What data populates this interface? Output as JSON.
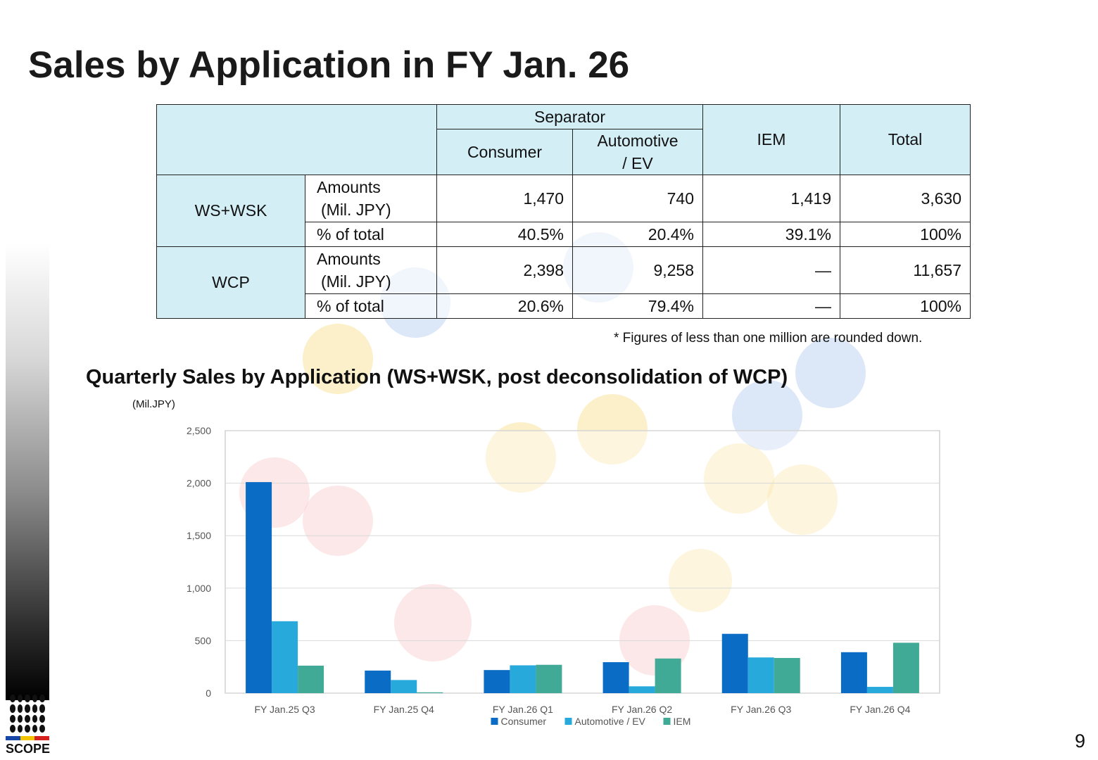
{
  "title": "Sales by Application in FY Jan. 26",
  "table": {
    "header_group": "Separator",
    "header_consumer": "Consumer",
    "header_automotive_l1": "Automotive",
    "header_automotive_l2": "/ EV",
    "header_iem": "IEM",
    "header_total": "Total",
    "rows": [
      {
        "segment": "WS+WSK",
        "amount_label_l1": "Amounts",
        "amount_label_l2": "(Mil. JPY)",
        "amounts": [
          "1,470",
          "740",
          "1,419",
          "3,630"
        ],
        "pct_label": "% of total",
        "pcts": [
          "40.5%",
          "20.4%",
          "39.1%",
          "100%"
        ]
      },
      {
        "segment": "WCP",
        "amount_label_l1": "Amounts",
        "amount_label_l2": "(Mil. JPY)",
        "amounts": [
          "2,398",
          "9,258",
          "—",
          "11,657"
        ],
        "pct_label": "% of total",
        "pcts": [
          "20.6%",
          "79.4%",
          "—",
          "100%"
        ]
      }
    ]
  },
  "note": "* Figures of less than one million are rounded down.",
  "chart_title": "Quarterly Sales by Application (WS+WSK, post deconsolidation of WCP)",
  "unit_label": "(Mil.JPY)",
  "chart_data": {
    "type": "bar",
    "categories": [
      "FY Jan.25 Q3",
      "FY Jan.25 Q4",
      "FY Jan.26 Q1",
      "FY Jan.26 Q2",
      "FY Jan.26 Q3",
      "FY Jan.26 Q4"
    ],
    "series": [
      {
        "name": "Consumer",
        "color": "#0a6cc4",
        "values": [
          2010,
          215,
          220,
          295,
          565,
          390
        ]
      },
      {
        "name": "Automotive / EV",
        "color": "#27a9dc",
        "values": [
          685,
          125,
          265,
          65,
          340,
          60
        ]
      },
      {
        "name": "IEM",
        "color": "#41aa96",
        "values": [
          262,
          8,
          270,
          330,
          335,
          480
        ]
      }
    ],
    "ylim": [
      0,
      2500
    ],
    "yticks": [
      "0",
      "500",
      "1,000",
      "1,500",
      "2,000",
      "2,500"
    ],
    "ytick_values": [
      0,
      500,
      1000,
      1500,
      2000,
      2500
    ],
    "grid": true,
    "legend": "bottom"
  },
  "branding": {
    "logo_text": "SCOPE"
  },
  "page_number": "9"
}
